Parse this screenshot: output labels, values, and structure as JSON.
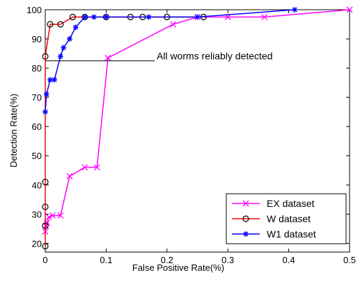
{
  "chart_data": {
    "type": "line",
    "xlabel": "False Positive Rate(%)",
    "ylabel": "Detection Rate(%)",
    "xlim": [
      0,
      0.5
    ],
    "xticks": [
      0,
      0.1,
      0.2,
      0.3,
      0.4,
      0.5
    ],
    "ylim": [
      17,
      100
    ],
    "yticks": [
      20,
      30,
      40,
      50,
      60,
      70,
      80,
      90,
      100
    ],
    "grid": false,
    "legend": "lower right",
    "annotation": {
      "text": "All worms reliably detected",
      "y": 82.5
    },
    "series": [
      {
        "name": "EX  dataset",
        "color": "#ff00ff",
        "marker": "x",
        "x": [
          0,
          0.001,
          0.003,
          0.006,
          0.012,
          0.025,
          0.04,
          0.065,
          0.085,
          0.103,
          0.21,
          0.25,
          0.3,
          0.36,
          0.5
        ],
        "values": [
          24,
          26,
          27,
          29,
          29.5,
          29.5,
          43,
          46,
          46,
          83.5,
          95,
          97.5,
          97.5,
          97.5,
          100
        ]
      },
      {
        "name": "W dataset",
        "color": "#ff0000",
        "marker": "o",
        "x": [
          0,
          0,
          0,
          0,
          0,
          0.008,
          0.025,
          0.045,
          0.065,
          0.1,
          0.14,
          0.16,
          0.2,
          0.26
        ],
        "values": [
          19,
          26,
          32.5,
          41,
          84,
          95,
          95,
          97.5,
          97.5,
          97.5,
          97.5,
          97.5,
          97.5,
          97.5
        ]
      },
      {
        "name": "W1 dataset",
        "color": "#0000ff",
        "marker": "*",
        "x": [
          0,
          0.002,
          0.008,
          0.015,
          0.025,
          0.03,
          0.04,
          0.05,
          0.065,
          0.08,
          0.1,
          0.17,
          0.25,
          0.41
        ],
        "values": [
          65,
          71,
          76,
          76,
          84,
          87,
          90,
          94,
          97.5,
          97.5,
          97.5,
          97.5,
          97.5,
          100
        ]
      }
    ]
  }
}
